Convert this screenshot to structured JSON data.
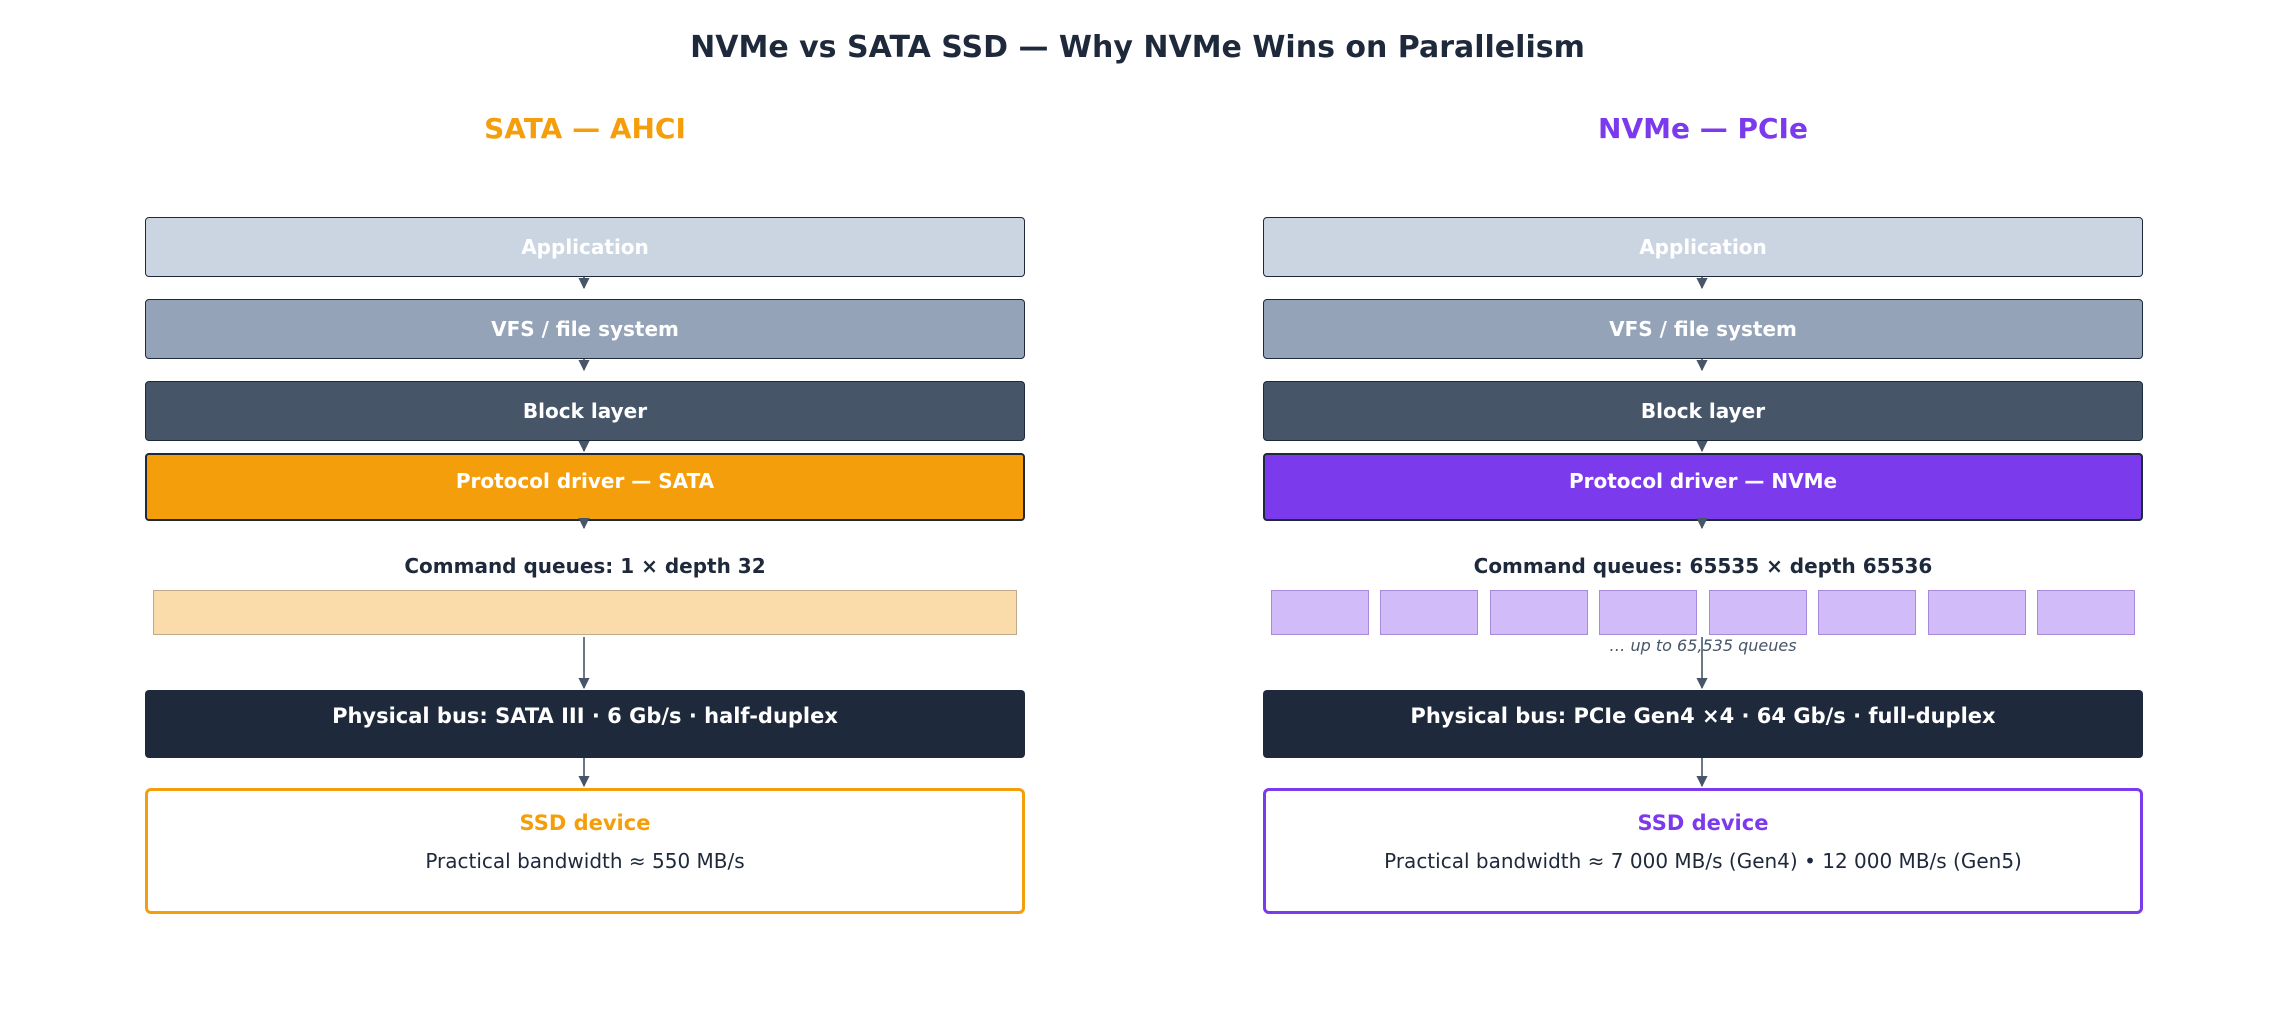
{
  "title": "NVMe vs SATA SSD — Why NVMe Wins on Parallelism",
  "colors": {
    "sata_accent": "#f59e0b",
    "nvme_accent": "#7c3aed",
    "sata_queue_fill": "#fadcaa",
    "nvme_queue_fill": "#d2bbf9",
    "bus_fill": "#1e293b"
  },
  "sata": {
    "heading": "SATA — AHCI",
    "layers": [
      "Application",
      "VFS / file system",
      "Block layer"
    ],
    "driver": "Protocol driver — SATA",
    "queues_label": "Command queues: 1  ×  depth 32",
    "queue_count_shown": 1,
    "bus": "Physical bus: SATA III · 6 Gb/s · half-duplex",
    "device_title": "SSD device",
    "device_bandwidth": "Practical bandwidth ≈ 550 MB/s"
  },
  "nvme": {
    "heading": "NVMe — PCIe",
    "layers": [
      "Application",
      "VFS / file system",
      "Block layer"
    ],
    "driver": "Protocol driver — NVMe",
    "queues_label": "Command queues: 65535  ×  depth 65536",
    "queue_count_shown": 8,
    "queue_note": "… up to 65,535 queues",
    "bus": "Physical bus: PCIe Gen4 ×4 · 64 Gb/s · full-duplex",
    "device_title": "SSD device",
    "device_bandwidth": "Practical bandwidth ≈ 7 000 MB/s (Gen4)  •  12 000 MB/s (Gen5)"
  }
}
